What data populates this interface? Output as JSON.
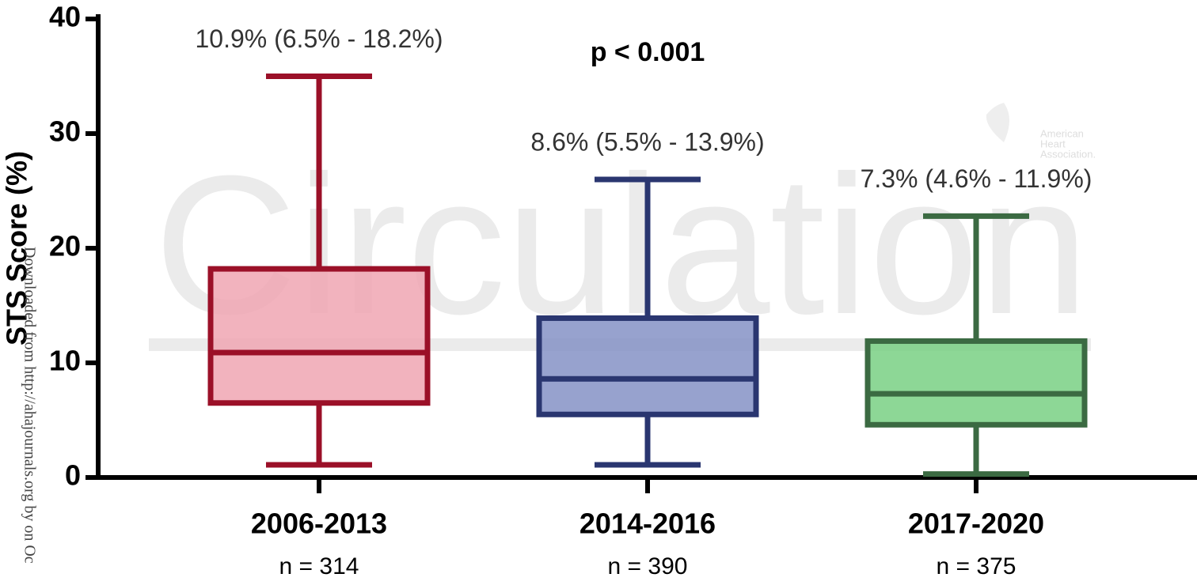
{
  "chart_data": {
    "type": "box",
    "y_label": "STS Score (%)",
    "annotation": "p < 0.001",
    "categories": [
      "2006-2013",
      "2014-2016",
      "2017-2020"
    ],
    "sample_sizes": [
      "n = 314",
      "n = 390",
      "n = 375"
    ],
    "boxes": [
      {
        "min": 1.1,
        "q1": 6.5,
        "median": 10.9,
        "q3": 18.2,
        "max": 35,
        "label": "10.9% (6.5% - 18.2%)",
        "color": "#9b1028",
        "fill": "#f0a6b3"
      },
      {
        "min": 1.1,
        "q1": 5.5,
        "median": 8.6,
        "q3": 13.9,
        "max": 26,
        "label": "8.6% (5.5% - 13.9%)",
        "color": "#2a3670",
        "fill": "#8592c6"
      },
      {
        "min": 0.3,
        "q1": 4.6,
        "median": 7.3,
        "q3": 11.9,
        "max": 22.8,
        "label": "7.3% (4.6% - 11.9%)",
        "color": "#3b6a42",
        "fill": "#79d084"
      }
    ],
    "ylim": [
      0,
      40
    ],
    "yticks": [
      0,
      10,
      20,
      30,
      40
    ]
  },
  "watermarks": {
    "journal": "Circulation",
    "logo": [
      "American",
      "Heart",
      "Association."
    ],
    "download": "Downloaded from http://ahajournals.org by on Oc"
  }
}
